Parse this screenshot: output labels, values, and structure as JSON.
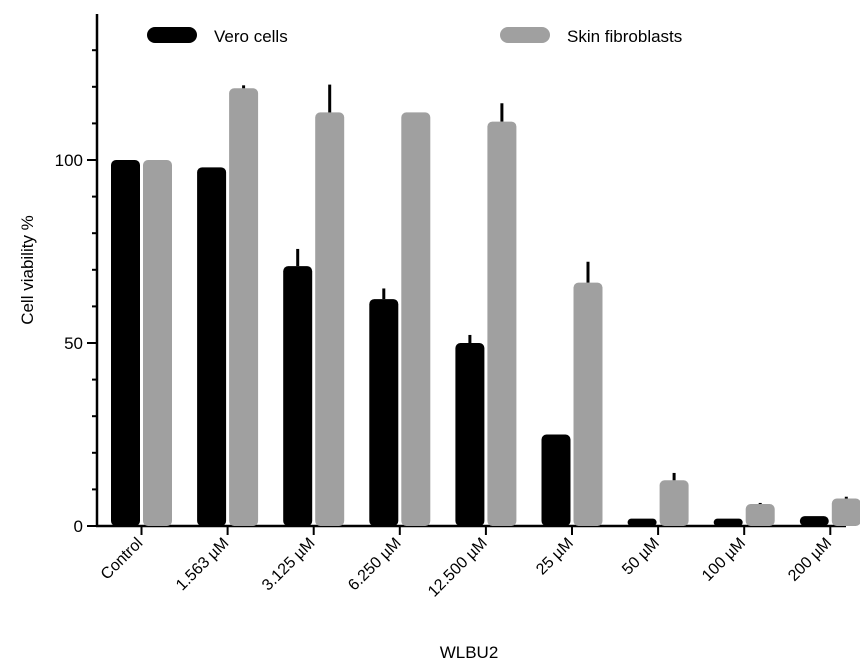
{
  "chart_data": {
    "type": "bar",
    "title": "",
    "xlabel": "WLBU2",
    "ylabel": "Cell viability %",
    "ylim": [
      0,
      138
    ],
    "yticks": [
      0,
      50,
      100
    ],
    "grid": false,
    "legend_position": "top",
    "categories": [
      "Control",
      "1.563 µM",
      "3.125 µM",
      "6.250 µM",
      "12.500 µM",
      "25 µM",
      "50 µM",
      "100 µM",
      "200 µM"
    ],
    "series": [
      {
        "name": "Vero cells",
        "color": "#000000",
        "values": [
          100,
          98,
          71,
          62,
          50,
          25,
          2,
          2,
          2.7
        ],
        "errors": [
          0,
          0,
          4.7,
          2.9,
          2.2,
          0,
          0,
          0,
          0
        ]
      },
      {
        "name": "Skin fibroblasts",
        "color": "#a0a0a0",
        "values": [
          100,
          119.6,
          113,
          113,
          110.5,
          66.5,
          12.5,
          6,
          7.5
        ],
        "errors": [
          0,
          0.8,
          7.6,
          0,
          5,
          5.7,
          2,
          0.3,
          0.5
        ]
      }
    ]
  }
}
